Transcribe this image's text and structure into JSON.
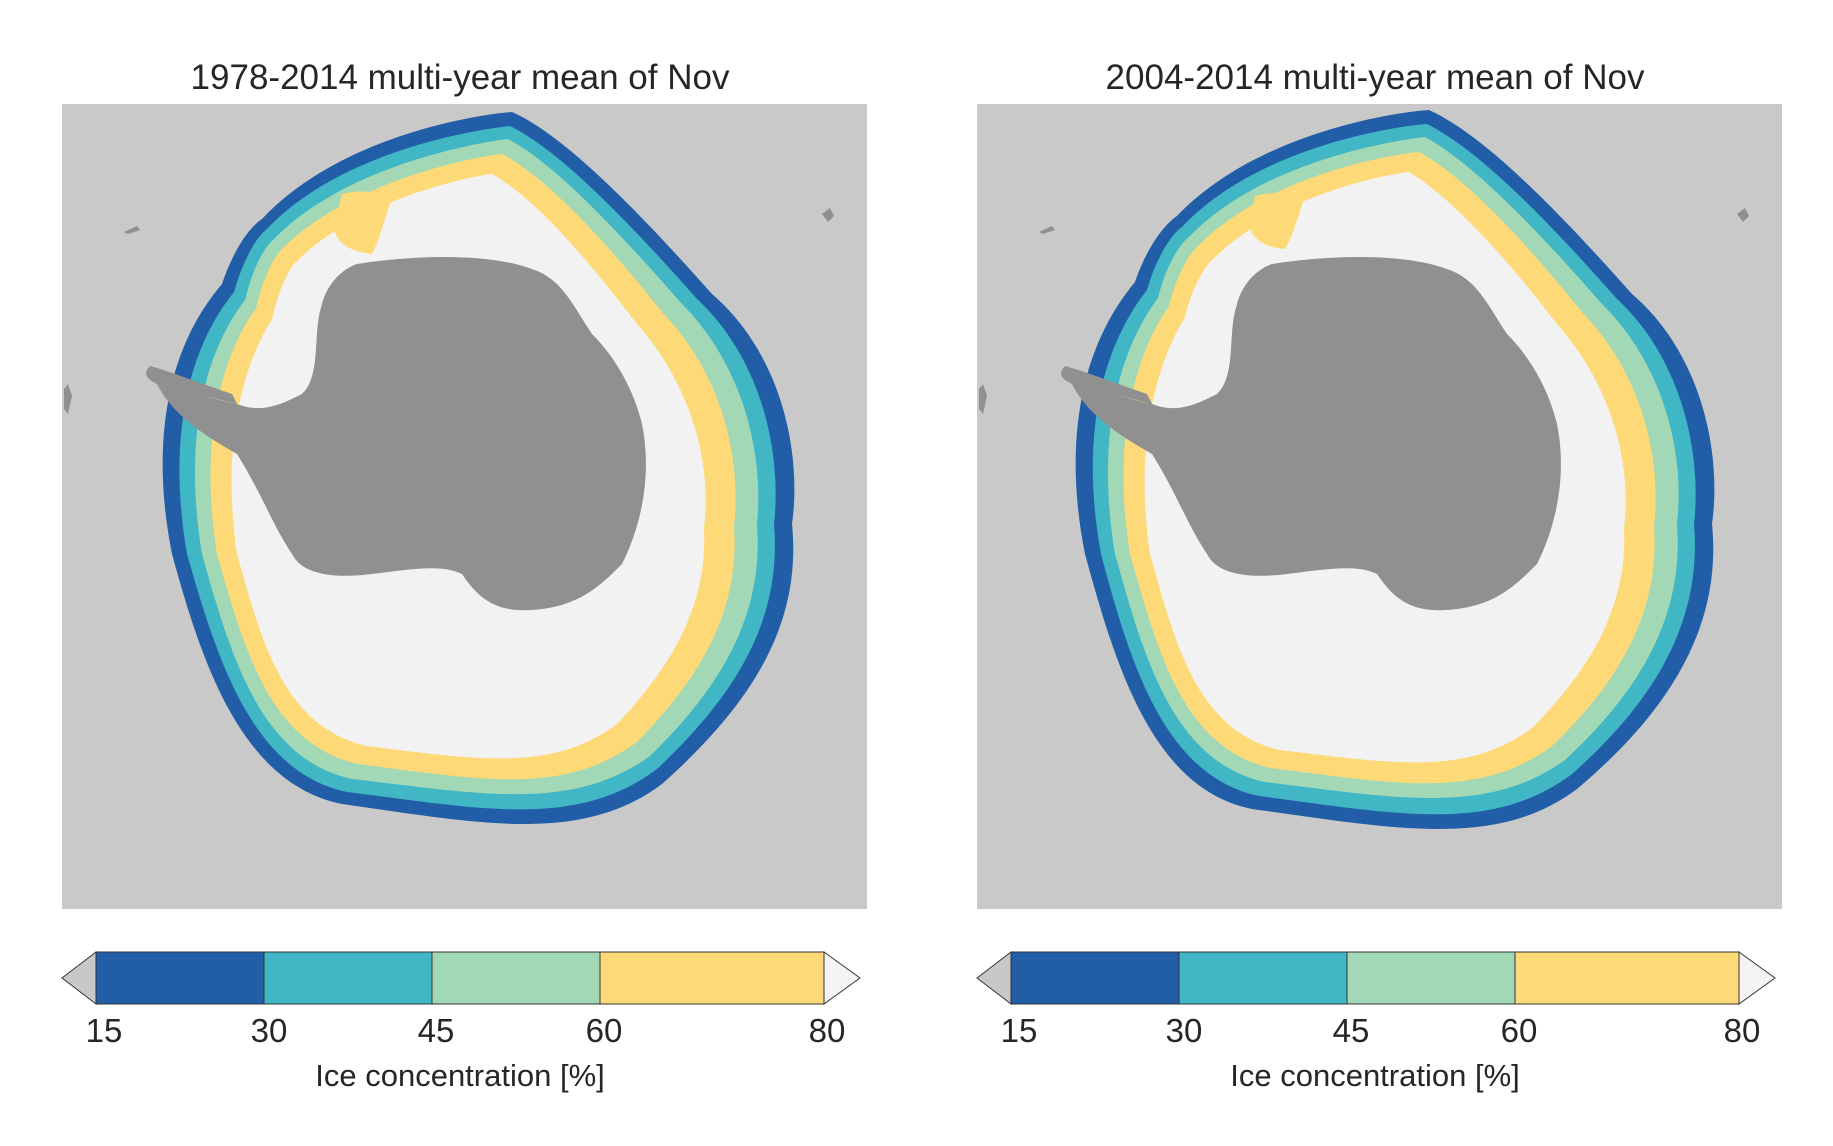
{
  "colors": {
    "background": "#c9c9c9",
    "land": "#909090",
    "ice_high": "#f2f2f2",
    "band_60_80": "#fdd977",
    "band_45_60": "#a3d8b6",
    "band_30_45": "#41b6c4",
    "band_15_30": "#225ea8",
    "under": "#c8c8c8",
    "over": "#f4f4f4"
  },
  "panels": [
    {
      "title": "1978-2014 multi-year mean of Nov",
      "colorbar": {
        "ticks": [
          "15",
          "30",
          "45",
          "60",
          "80"
        ],
        "label": "Ice concentration [%]"
      }
    },
    {
      "title": "2004-2014 multi-year mean of Nov",
      "colorbar": {
        "ticks": [
          "15",
          "30",
          "45",
          "60",
          "80"
        ],
        "label": "Ice concentration [%]"
      }
    }
  ]
}
